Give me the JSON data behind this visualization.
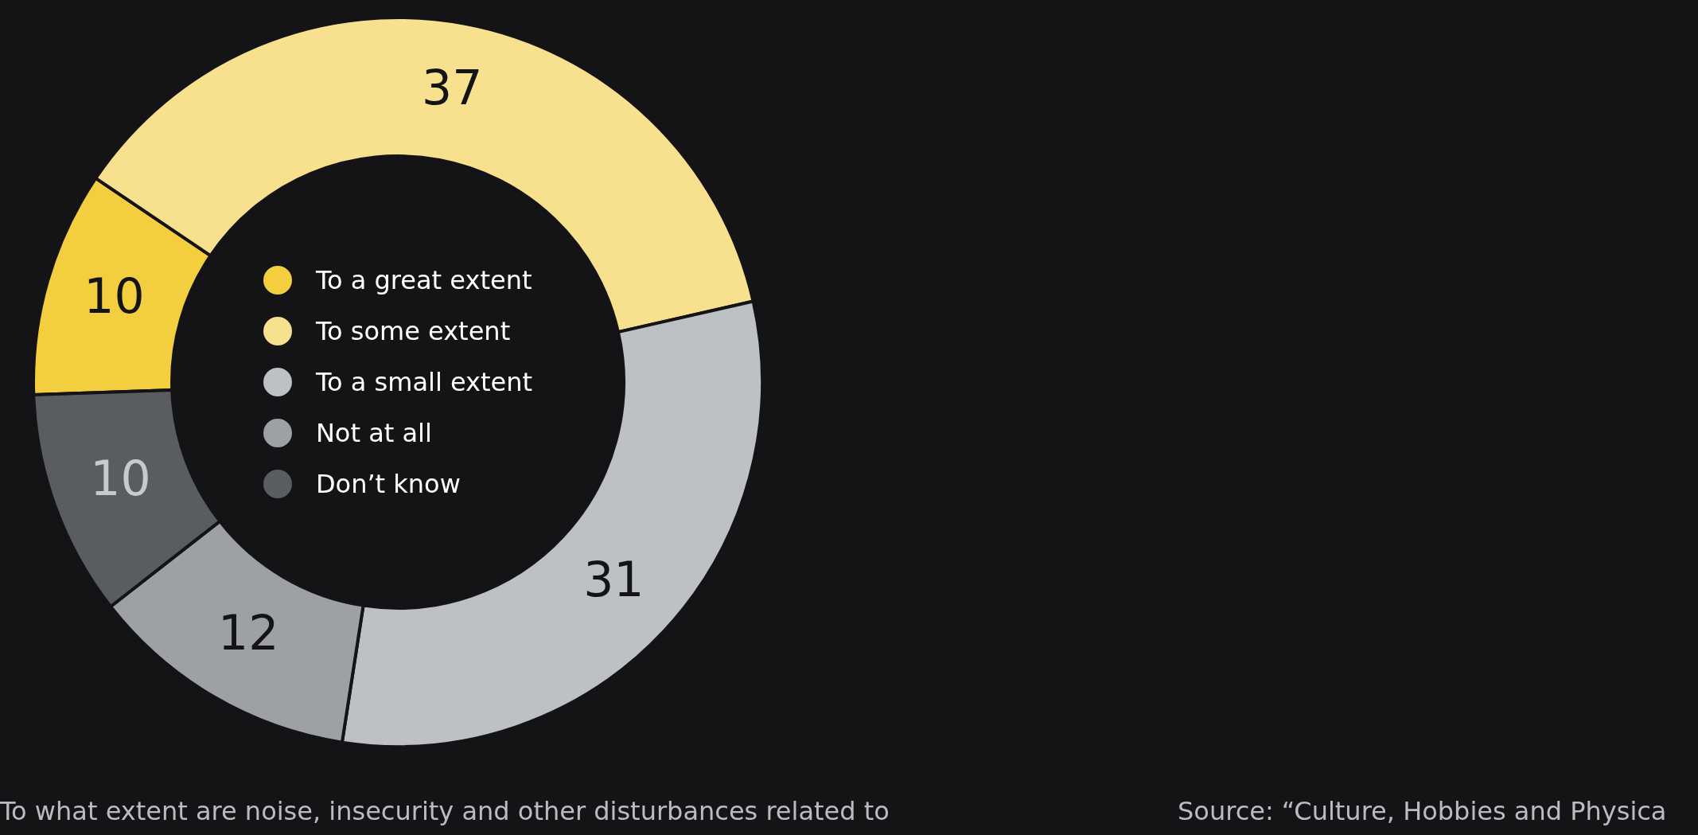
{
  "chart_data": {
    "type": "donut",
    "categories": [
      "To a great extent",
      "To some extent",
      "To a small extent",
      "Not at all",
      "Don’t know"
    ],
    "values": [
      10,
      37,
      31,
      12,
      10
    ],
    "colors": [
      "#f3cf40",
      "#f7e18e",
      "#bec1c4",
      "#9da0a5",
      "#595d60"
    ],
    "data_labels": true,
    "legend": "center",
    "annotations": [
      "To what extent are noise, insecurity and other disturbances related to",
      "Source: “Culture, Hobbies and Physica"
    ]
  }
}
